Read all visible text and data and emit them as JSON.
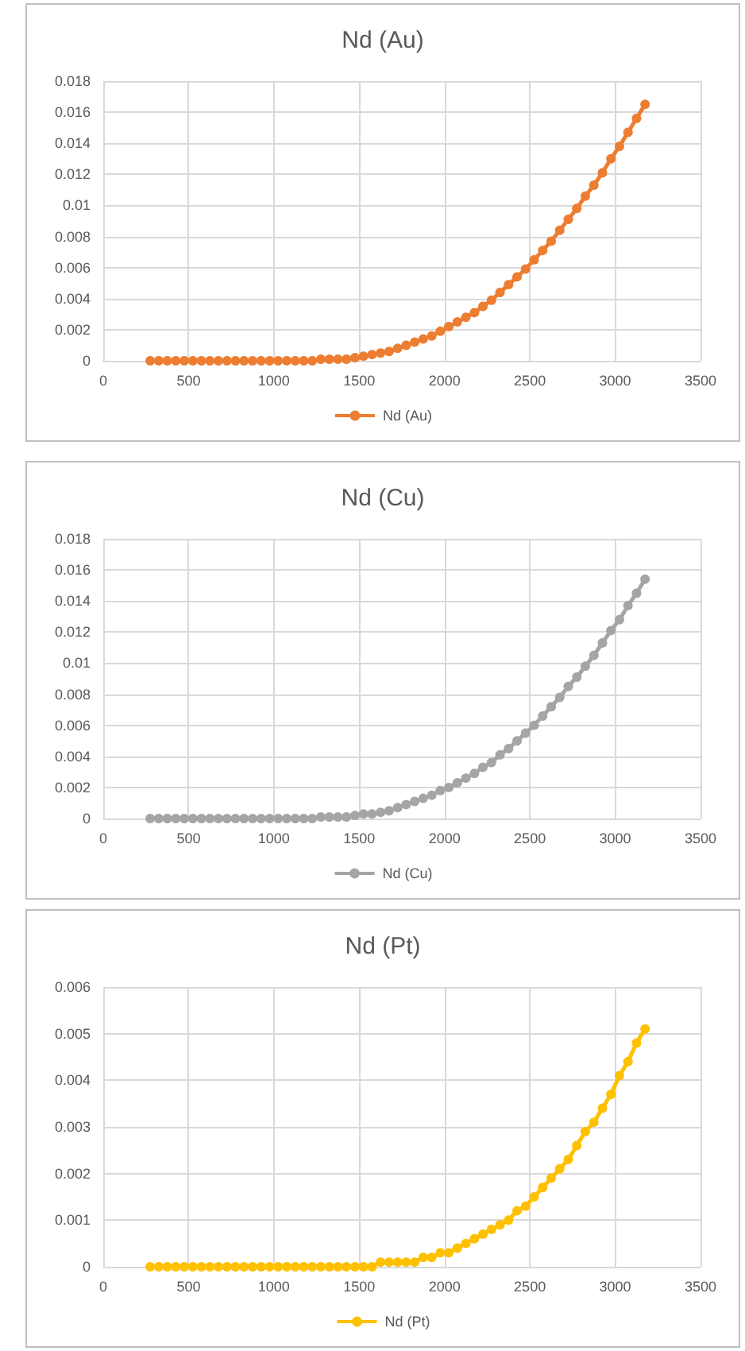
{
  "chart_data": [
    {
      "type": "line",
      "title": "Nd (Au)",
      "marker": "circle",
      "grid": true,
      "legend": "bottom",
      "xlim": [
        0,
        3500
      ],
      "xticks": [
        0,
        500,
        1000,
        1500,
        2000,
        2500,
        3000,
        3500
      ],
      "ylim": [
        0,
        0.018
      ],
      "yticks": [
        0,
        0.002,
        0.004,
        0.006,
        0.008,
        0.01,
        0.012,
        0.014,
        0.016,
        0.018
      ],
      "x": [
        275,
        325,
        375,
        425,
        475,
        525,
        575,
        625,
        675,
        725,
        775,
        825,
        875,
        925,
        975,
        1025,
        1075,
        1125,
        1175,
        1225,
        1275,
        1325,
        1375,
        1425,
        1475,
        1525,
        1575,
        1625,
        1675,
        1725,
        1775,
        1825,
        1875,
        1925,
        1975,
        2025,
        2075,
        2125,
        2175,
        2225,
        2275,
        2325,
        2375,
        2425,
        2475,
        2525,
        2575,
        2625,
        2675,
        2725,
        2775,
        2825,
        2875,
        2925,
        2975,
        3025,
        3075,
        3125,
        3175
      ],
      "series": [
        {
          "name": "Nd (Au)",
          "color": "#ed7d31",
          "values": [
            0,
            0,
            0,
            0,
            0,
            0,
            0,
            0,
            0,
            0,
            0,
            0,
            0,
            0,
            0,
            0,
            0,
            0,
            0,
            0,
            0.0001,
            0.0001,
            0.0001,
            0.0001,
            0.0002,
            0.0003,
            0.0004,
            0.0005,
            0.0006,
            0.0008,
            0.001,
            0.0012,
            0.0014,
            0.0016,
            0.0019,
            0.0022,
            0.0025,
            0.0028,
            0.0031,
            0.0035,
            0.0039,
            0.0044,
            0.0049,
            0.0054,
            0.0059,
            0.0065,
            0.0071,
            0.0077,
            0.0084,
            0.0091,
            0.0098,
            0.0106,
            0.0113,
            0.0121,
            0.013,
            0.0138,
            0.0147,
            0.0156,
            0.0165
          ]
        }
      ]
    },
    {
      "type": "line",
      "title": "Nd (Cu)",
      "marker": "circle",
      "grid": true,
      "legend": "bottom",
      "xlim": [
        0,
        3500
      ],
      "xticks": [
        0,
        500,
        1000,
        1500,
        2000,
        2500,
        3000,
        3500
      ],
      "ylim": [
        0,
        0.018
      ],
      "yticks": [
        0,
        0.002,
        0.004,
        0.006,
        0.008,
        0.01,
        0.012,
        0.014,
        0.016,
        0.018
      ],
      "x": [
        275,
        325,
        375,
        425,
        475,
        525,
        575,
        625,
        675,
        725,
        775,
        825,
        875,
        925,
        975,
        1025,
        1075,
        1125,
        1175,
        1225,
        1275,
        1325,
        1375,
        1425,
        1475,
        1525,
        1575,
        1625,
        1675,
        1725,
        1775,
        1825,
        1875,
        1925,
        1975,
        2025,
        2075,
        2125,
        2175,
        2225,
        2275,
        2325,
        2375,
        2425,
        2475,
        2525,
        2575,
        2625,
        2675,
        2725,
        2775,
        2825,
        2875,
        2925,
        2975,
        3025,
        3075,
        3125,
        3175
      ],
      "series": [
        {
          "name": "Nd (Cu)",
          "color": "#a5a5a5",
          "values": [
            0,
            0,
            0,
            0,
            0,
            0,
            0,
            0,
            0,
            0,
            0,
            0,
            0,
            0,
            0,
            0,
            0,
            0,
            0,
            0,
            0.0001,
            0.0001,
            0.0001,
            0.0001,
            0.0002,
            0.0003,
            0.0003,
            0.0004,
            0.0005,
            0.0007,
            0.0009,
            0.0011,
            0.0013,
            0.0015,
            0.0018,
            0.002,
            0.0023,
            0.0026,
            0.0029,
            0.0033,
            0.0036,
            0.0041,
            0.0045,
            0.005,
            0.0055,
            0.006,
            0.0066,
            0.0072,
            0.0078,
            0.0085,
            0.0091,
            0.0098,
            0.0105,
            0.0113,
            0.0121,
            0.0128,
            0.0137,
            0.0145,
            0.0154
          ]
        }
      ]
    },
    {
      "type": "line",
      "title": "Nd (Pt)",
      "marker": "circle",
      "grid": true,
      "legend": "bottom",
      "xlim": [
        0,
        3500
      ],
      "xticks": [
        0,
        500,
        1000,
        1500,
        2000,
        2500,
        3000,
        3500
      ],
      "ylim": [
        0,
        0.006
      ],
      "yticks": [
        0,
        0.001,
        0.002,
        0.003,
        0.004,
        0.005,
        0.006
      ],
      "x": [
        275,
        325,
        375,
        425,
        475,
        525,
        575,
        625,
        675,
        725,
        775,
        825,
        875,
        925,
        975,
        1025,
        1075,
        1125,
        1175,
        1225,
        1275,
        1325,
        1375,
        1425,
        1475,
        1525,
        1575,
        1625,
        1675,
        1725,
        1775,
        1825,
        1875,
        1925,
        1975,
        2025,
        2075,
        2125,
        2175,
        2225,
        2275,
        2325,
        2375,
        2425,
        2475,
        2525,
        2575,
        2625,
        2675,
        2725,
        2775,
        2825,
        2875,
        2925,
        2975,
        3025,
        3075,
        3125,
        3175
      ],
      "series": [
        {
          "name": "Nd (Pt)",
          "color": "#ffc000",
          "values": [
            0,
            0,
            0,
            0,
            0,
            0,
            0,
            0,
            0,
            0,
            0,
            0,
            0,
            0,
            0,
            0,
            0,
            0,
            0,
            0,
            0,
            0,
            0,
            0,
            0,
            0,
            0,
            0.0001,
            0.0001,
            0.0001,
            0.0001,
            0.0001,
            0.0002,
            0.0002,
            0.0003,
            0.0003,
            0.0004,
            0.0005,
            0.0006,
            0.0007,
            0.0008,
            0.0009,
            0.001,
            0.0012,
            0.0013,
            0.0015,
            0.0017,
            0.0019,
            0.0021,
            0.0023,
            0.0026,
            0.0029,
            0.0031,
            0.0034,
            0.0037,
            0.0041,
            0.0044,
            0.0048,
            0.0051
          ]
        }
      ]
    }
  ]
}
